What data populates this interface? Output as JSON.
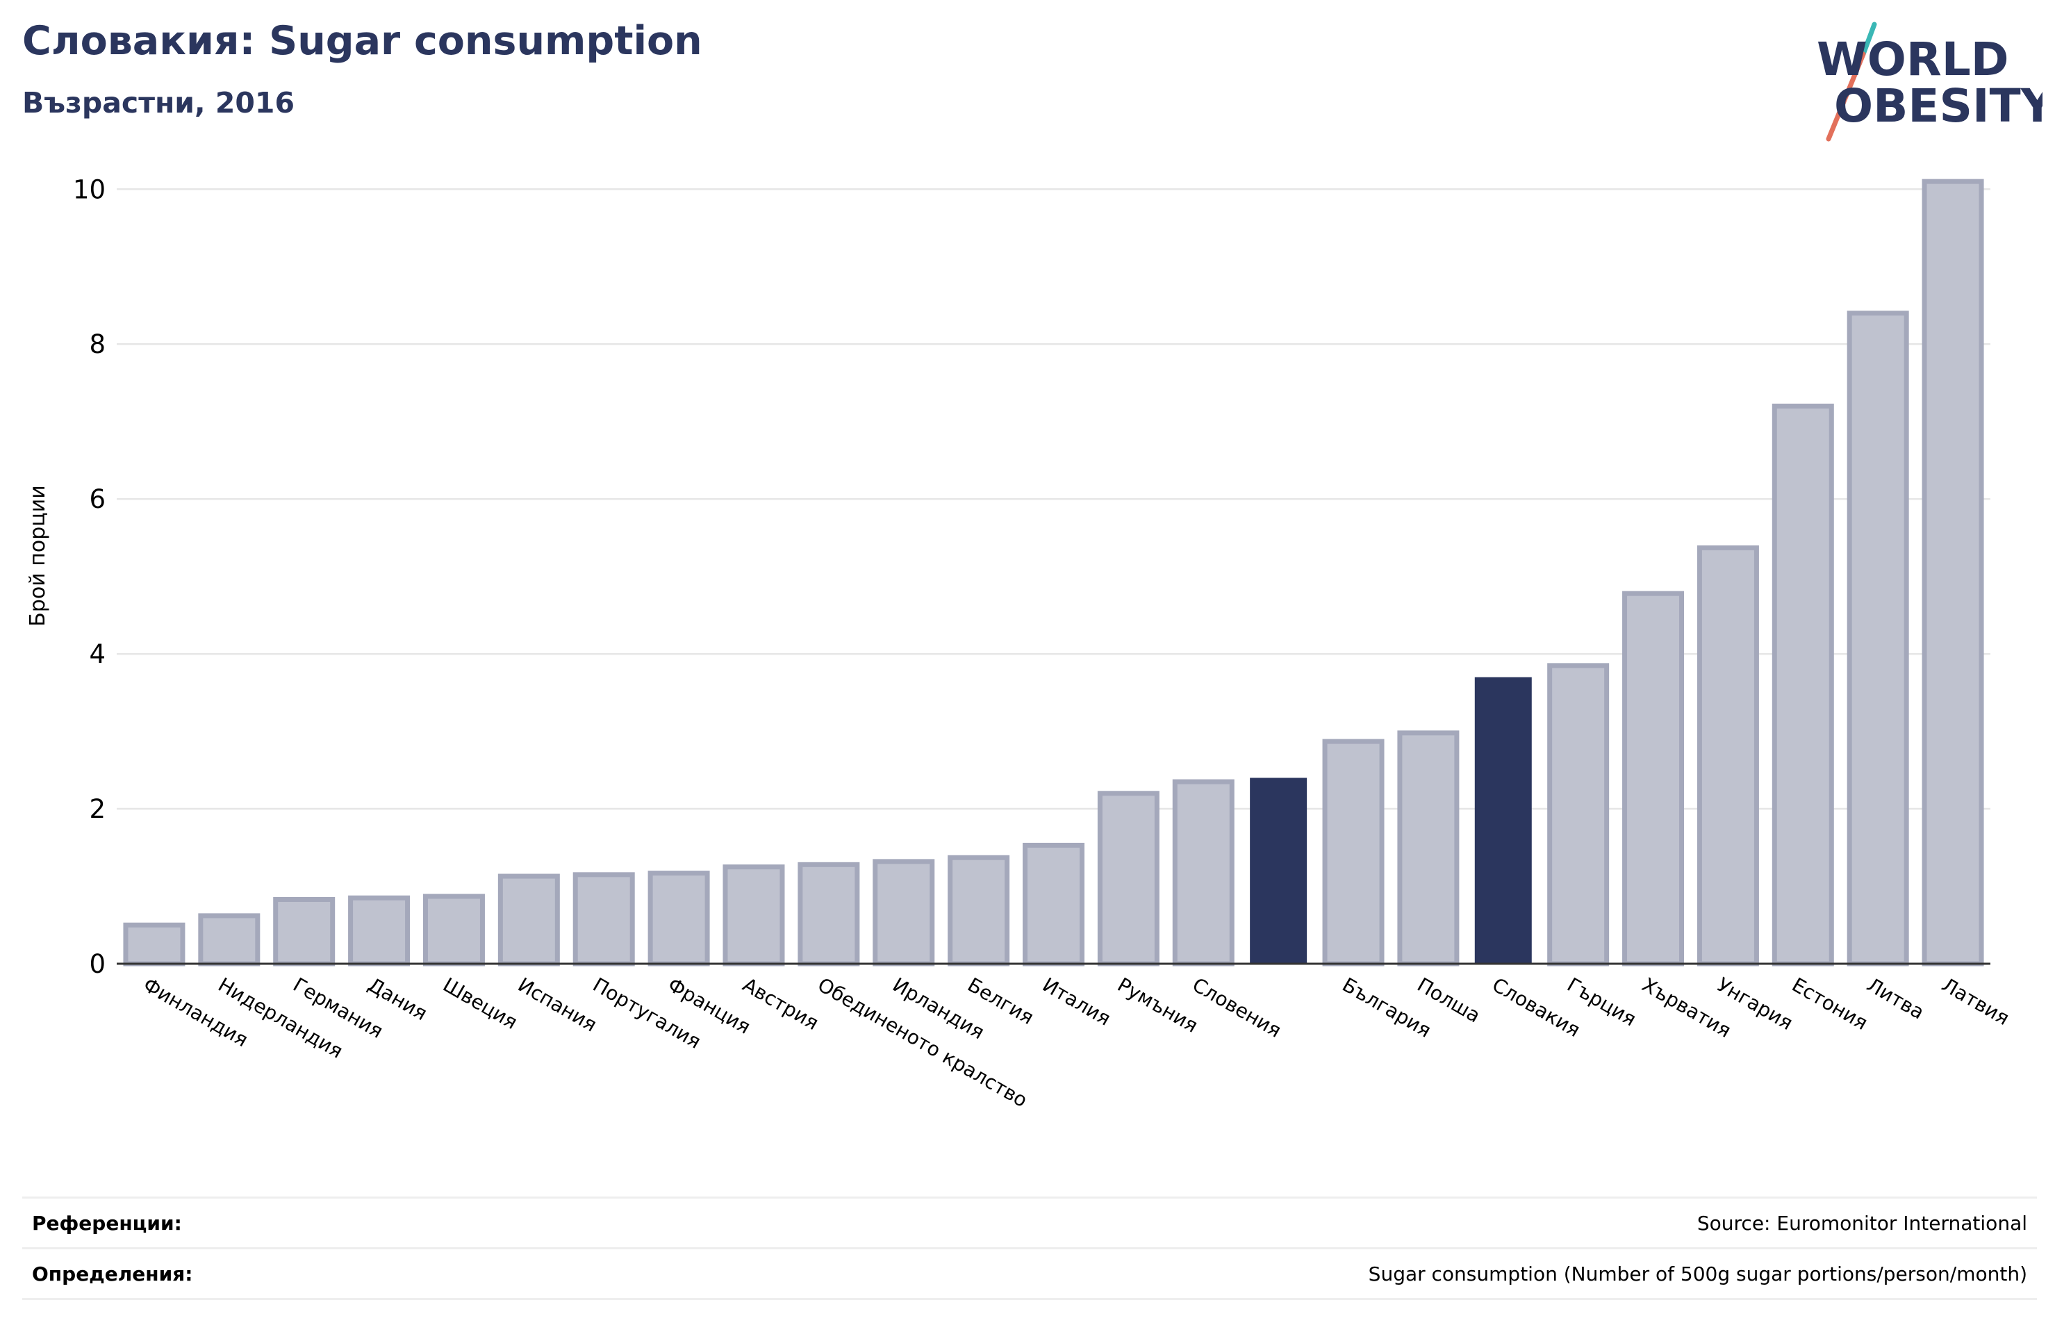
{
  "header": {
    "title": "Словакия: Sugar consumption",
    "subtitle": "Възрастни, 2016"
  },
  "logo": {
    "line1": "WORLD",
    "line2": "OBESITY",
    "colors": {
      "text": "#2b365e",
      "slash_top": "#3ab7b5",
      "slash_bottom": "#e2705b"
    }
  },
  "chart_data": {
    "type": "bar",
    "ylabel": "Брой порции",
    "xlabel": "",
    "ylim": [
      0,
      10.2
    ],
    "yticks": [
      0,
      2,
      4,
      6,
      8,
      10
    ],
    "grid": true,
    "categories": [
      "Финландия",
      "Нидерландия",
      "Германия",
      "Дания",
      "Швеция",
      "Испания",
      "Португалия",
      "Франция",
      "Австрия",
      "Обединеното кралство",
      "Ирландия",
      "Белгия",
      "Италия",
      "Румъния",
      "Словения",
      "",
      "България",
      "Полша",
      "Словакия",
      "Гърция",
      "Хърватия",
      "Унгария",
      "Естония",
      "Литва",
      "Латвия"
    ],
    "values": [
      0.5,
      0.62,
      0.83,
      0.85,
      0.87,
      1.13,
      1.15,
      1.17,
      1.25,
      1.28,
      1.32,
      1.37,
      1.53,
      2.2,
      2.35,
      2.4,
      2.87,
      2.98,
      3.7,
      3.85,
      4.78,
      5.37,
      7.2,
      8.4,
      10.1
    ],
    "highlight_indices": [
      15,
      18
    ],
    "colors": {
      "bar": "#bfc2cf",
      "bar_edge": "#a4a8bb",
      "highlight": "#2b365e",
      "grid": "#e6e6e6",
      "axis": "#333333"
    }
  },
  "footer": {
    "references_label": "Референции:",
    "references_value": "Source: Euromonitor International",
    "definitions_label": "Определения:",
    "definitions_value": "Sugar consumption (Number of 500g sugar portions/person/month)"
  }
}
